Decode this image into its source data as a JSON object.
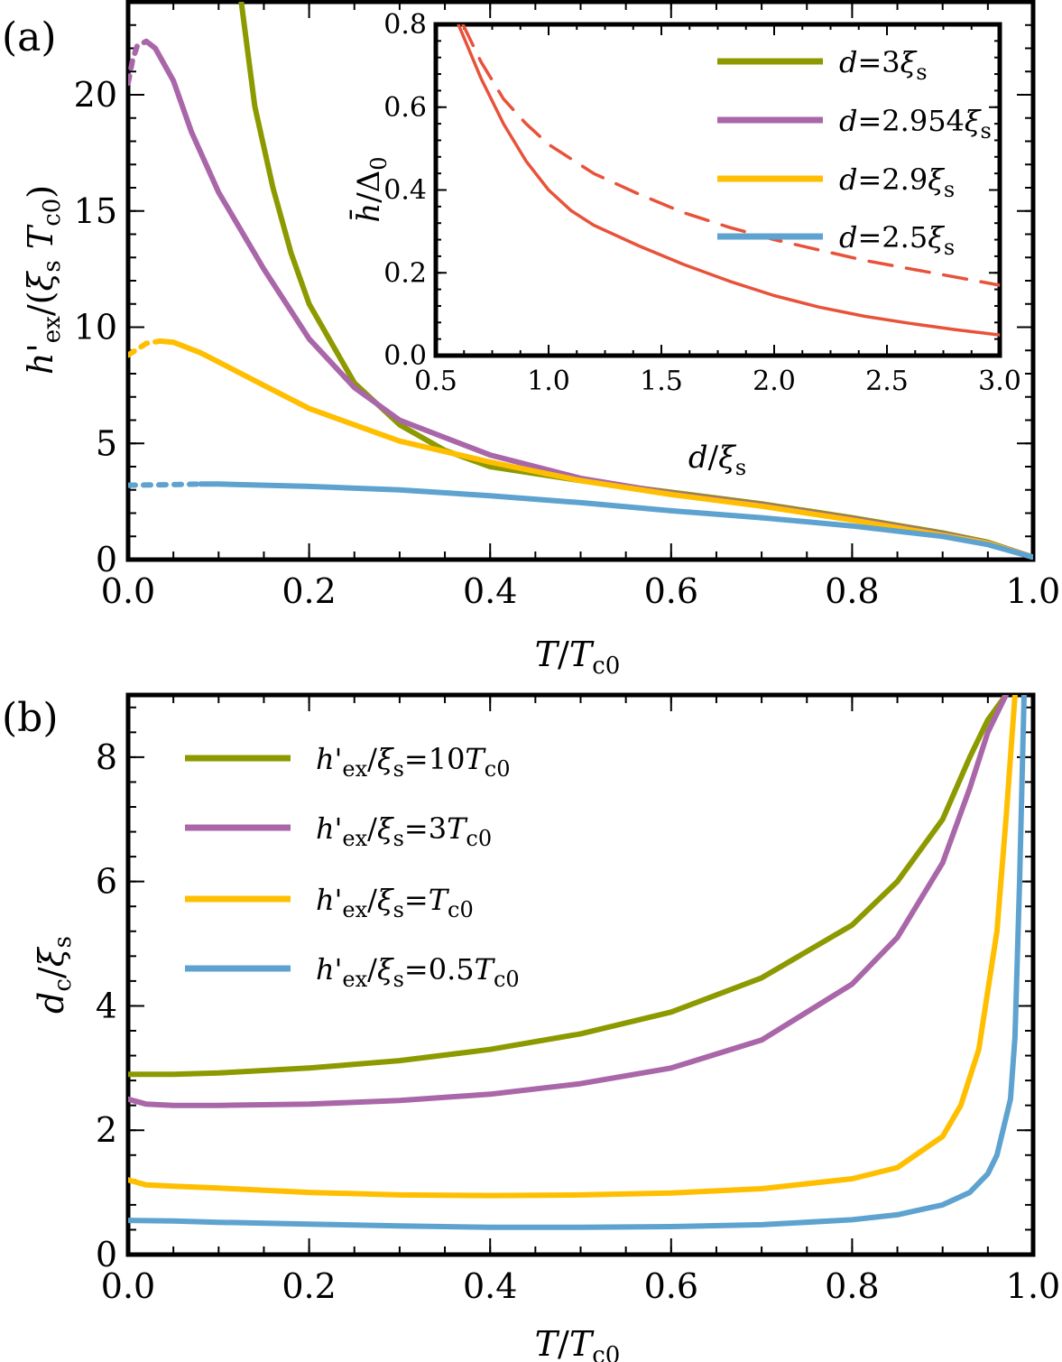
{
  "chart_data": [
    {
      "id": "a",
      "panel_label": "(a)",
      "type": "line",
      "xlabel": "T/T_c0",
      "ylabel": "h'_ex/(ξ_s T_c0)",
      "xlim": [
        0,
        1
      ],
      "ylim": [
        0,
        24
      ],
      "xticks": [
        "0.0",
        "0.2",
        "0.4",
        "0.6",
        "0.8",
        "1.0"
      ],
      "yticks": [
        "0",
        "5",
        "10",
        "15",
        "20"
      ],
      "series": [
        {
          "name": "d=3ξ_s",
          "color": "#8c9a00",
          "x": [
            0.125,
            0.14,
            0.16,
            0.18,
            0.2,
            0.25,
            0.3,
            0.35,
            0.4,
            0.5,
            0.6,
            0.7,
            0.8,
            0.9,
            0.95,
            1.0
          ],
          "y": [
            24,
            19.5,
            16,
            13.2,
            11.0,
            7.6,
            5.8,
            4.7,
            4.0,
            3.4,
            2.9,
            2.4,
            1.8,
            1.15,
            0.75,
            0.1
          ],
          "dashed_until": null
        },
        {
          "name": "d=2.954ξ_s",
          "color": "#a966a8",
          "x": [
            0.0,
            0.005,
            0.01,
            0.02,
            0.03,
            0.05,
            0.07,
            0.1,
            0.15,
            0.2,
            0.25,
            0.3,
            0.4,
            0.5,
            0.6,
            0.7,
            0.8,
            0.9,
            0.95,
            1.0
          ],
          "y": [
            20.5,
            21.5,
            22.1,
            22.3,
            22.0,
            20.6,
            18.4,
            15.8,
            12.5,
            9.5,
            7.4,
            6.0,
            4.5,
            3.5,
            2.85,
            2.35,
            1.75,
            1.1,
            0.72,
            0.1
          ],
          "dashed_until": 0.02
        },
        {
          "name": "d=2.9ξ_s",
          "color": "#ffbf00",
          "x": [
            0.0,
            0.02,
            0.035,
            0.05,
            0.08,
            0.1,
            0.15,
            0.2,
            0.3,
            0.4,
            0.5,
            0.6,
            0.7,
            0.8,
            0.9,
            0.95,
            1.0
          ],
          "y": [
            8.8,
            9.3,
            9.4,
            9.35,
            8.9,
            8.5,
            7.5,
            6.5,
            5.1,
            4.2,
            3.4,
            2.8,
            2.3,
            1.7,
            1.05,
            0.7,
            0.1
          ],
          "dashed_until": 0.035
        },
        {
          "name": "d=2.5ξ_s",
          "color": "#5ea2d0",
          "x": [
            0.0,
            0.04,
            0.08,
            0.1,
            0.2,
            0.3,
            0.4,
            0.5,
            0.6,
            0.7,
            0.8,
            0.9,
            0.95,
            1.0
          ],
          "y": [
            3.2,
            3.22,
            3.25,
            3.25,
            3.15,
            3.0,
            2.75,
            2.45,
            2.1,
            1.8,
            1.45,
            1.0,
            0.65,
            0.1
          ],
          "dashed_until": 0.08
        }
      ],
      "inset": {
        "type": "line",
        "xlabel": "d/ξ_s",
        "ylabel": "h̄/Δ_0",
        "xlim": [
          0.5,
          3.0
        ],
        "ylim": [
          0,
          0.8
        ],
        "xticks": [
          "0.5",
          "1.0",
          "1.5",
          "2.0",
          "2.5",
          "3.0"
        ],
        "yticks": [
          "0.0",
          "0.2",
          "0.4",
          "0.6",
          "0.8"
        ],
        "series": [
          {
            "name": "solid",
            "color": "#e8523a",
            "style": "solid",
            "x": [
              0.6,
              0.7,
              0.8,
              0.9,
              1.0,
              1.1,
              1.2,
              1.4,
              1.6,
              1.8,
              2.0,
              2.2,
              2.4,
              2.6,
              2.8,
              3.0
            ],
            "y": [
              0.8,
              0.67,
              0.56,
              0.47,
              0.4,
              0.35,
              0.315,
              0.265,
              0.22,
              0.18,
              0.145,
              0.117,
              0.095,
              0.078,
              0.063,
              0.05
            ]
          },
          {
            "name": "dashed",
            "color": "#e8523a",
            "style": "dashed",
            "x": [
              0.62,
              0.7,
              0.8,
              0.9,
              1.0,
              1.2,
              1.4,
              1.6,
              1.8,
              2.0,
              2.2,
              2.4,
              2.6,
              2.8,
              3.0
            ],
            "y": [
              0.8,
              0.71,
              0.62,
              0.56,
              0.51,
              0.44,
              0.39,
              0.345,
              0.31,
              0.28,
              0.255,
              0.23,
              0.21,
              0.19,
              0.17
            ]
          }
        ]
      },
      "legend": [
        "d=3ξ_s",
        "d=2.954ξ_s",
        "d=2.9ξ_s",
        "d=2.5ξ_s"
      ]
    },
    {
      "id": "b",
      "panel_label": "(b)",
      "type": "line",
      "xlabel": "T/T_c0",
      "ylabel": "d_c/ξ_s",
      "xlim": [
        0,
        1
      ],
      "ylim": [
        0,
        9
      ],
      "xticks": [
        "0.0",
        "0.2",
        "0.4",
        "0.6",
        "0.8",
        "1.0"
      ],
      "yticks": [
        "0",
        "2",
        "4",
        "6",
        "8"
      ],
      "series": [
        {
          "name": "h'_ex/ξ_s=10T_c0",
          "color": "#8c9a00",
          "x": [
            0.0,
            0.05,
            0.1,
            0.2,
            0.3,
            0.4,
            0.5,
            0.6,
            0.7,
            0.8,
            0.85,
            0.9,
            0.93,
            0.95,
            0.97
          ],
          "y": [
            2.9,
            2.9,
            2.92,
            3.0,
            3.12,
            3.3,
            3.55,
            3.9,
            4.45,
            5.3,
            6.0,
            7.0,
            8.0,
            8.6,
            9.0
          ]
        },
        {
          "name": "h'_ex/ξ_s=3T_c0",
          "color": "#a966a8",
          "x": [
            0.0,
            0.02,
            0.05,
            0.1,
            0.2,
            0.3,
            0.4,
            0.5,
            0.6,
            0.7,
            0.8,
            0.85,
            0.9,
            0.93,
            0.95,
            0.97
          ],
          "y": [
            2.5,
            2.42,
            2.4,
            2.4,
            2.42,
            2.48,
            2.58,
            2.75,
            3.0,
            3.45,
            4.35,
            5.1,
            6.3,
            7.5,
            8.4,
            9.0
          ]
        },
        {
          "name": "h'_ex/ξ_s=T_c0",
          "color": "#ffbf00",
          "x": [
            0.0,
            0.02,
            0.05,
            0.1,
            0.2,
            0.3,
            0.4,
            0.5,
            0.6,
            0.7,
            0.8,
            0.85,
            0.9,
            0.92,
            0.94,
            0.96,
            0.97,
            0.98
          ],
          "y": [
            1.2,
            1.12,
            1.1,
            1.07,
            1.0,
            0.96,
            0.95,
            0.96,
            0.99,
            1.06,
            1.22,
            1.4,
            1.9,
            2.4,
            3.3,
            5.2,
            7.0,
            9.0
          ]
        },
        {
          "name": "h'_ex/ξ_s=0.5T_c0",
          "color": "#5ea2d0",
          "x": [
            0.0,
            0.05,
            0.1,
            0.2,
            0.3,
            0.4,
            0.5,
            0.6,
            0.7,
            0.8,
            0.85,
            0.9,
            0.93,
            0.95,
            0.96,
            0.97,
            0.975,
            0.98,
            0.985,
            0.99
          ],
          "y": [
            0.55,
            0.54,
            0.52,
            0.49,
            0.46,
            0.44,
            0.44,
            0.45,
            0.48,
            0.56,
            0.64,
            0.8,
            1.0,
            1.3,
            1.6,
            2.2,
            2.5,
            3.5,
            6.0,
            9.0
          ]
        }
      ],
      "legend": [
        "h'_ex/ξ_s=10T_c0",
        "h'_ex/ξ_s=3T_c0",
        "h'_ex/ξ_s=T_c0",
        "h'_ex/ξ_s=0.5T_c0"
      ]
    }
  ]
}
